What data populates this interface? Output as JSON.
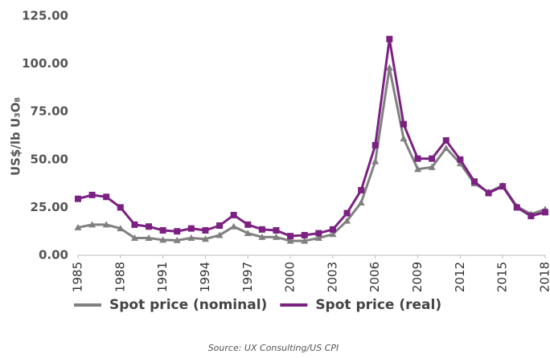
{
  "chart_data": {
    "type": "line",
    "y_label": "US$/lb U₃O₈",
    "source": "Source: UX Consulting/US CPI",
    "x": [
      1985,
      1986,
      1987,
      1988,
      1989,
      1990,
      1991,
      1992,
      1993,
      1994,
      1995,
      1996,
      1997,
      1998,
      1999,
      2000,
      2001,
      2002,
      2003,
      2004,
      2005,
      2006,
      2007,
      2008,
      2009,
      2010,
      2011,
      2012,
      2013,
      2014,
      2015,
      2016,
      2017,
      2018
    ],
    "xlim": [
      1985,
      2018
    ],
    "xticks": [
      1985,
      1988,
      1991,
      1994,
      1997,
      2000,
      2003,
      2006,
      2009,
      2012,
      2015,
      2018
    ],
    "ylim": [
      0,
      125
    ],
    "yticks": [
      {
        "value": 0,
        "label": "0.00"
      },
      {
        "value": 25,
        "label": "25.00"
      },
      {
        "value": 50,
        "label": "50.00"
      },
      {
        "value": 75,
        "label": "75.00"
      },
      {
        "value": 100,
        "label": "100.00"
      },
      {
        "value": 125,
        "label": "125.00"
      }
    ],
    "grid": false,
    "legend": "bottom",
    "series": [
      {
        "name": "Spot price (nominal)",
        "color": "#808080",
        "marker": "triangle",
        "values": [
          14.5,
          16,
          16,
          14,
          9,
          9,
          8,
          7.8,
          9,
          8.5,
          10.5,
          15,
          11.5,
          9.5,
          9.5,
          7.5,
          7.5,
          9,
          11,
          18,
          27.5,
          49,
          98,
          61,
          45,
          46,
          56,
          48,
          37.5,
          33,
          36.5,
          25.5,
          21.5,
          24
        ]
      },
      {
        "name": "Spot price (real)",
        "color": "#7b2182",
        "marker": "square",
        "values": [
          29.5,
          31.5,
          30.5,
          25,
          16,
          15,
          13,
          12.5,
          14,
          13,
          15.5,
          21,
          16,
          13.5,
          13,
          10,
          10.5,
          11.5,
          13.5,
          22,
          34,
          57.5,
          113,
          68.5,
          50.5,
          50.5,
          60,
          50,
          38.5,
          32.5,
          36,
          25,
          20.5,
          22.5
        ]
      }
    ]
  }
}
